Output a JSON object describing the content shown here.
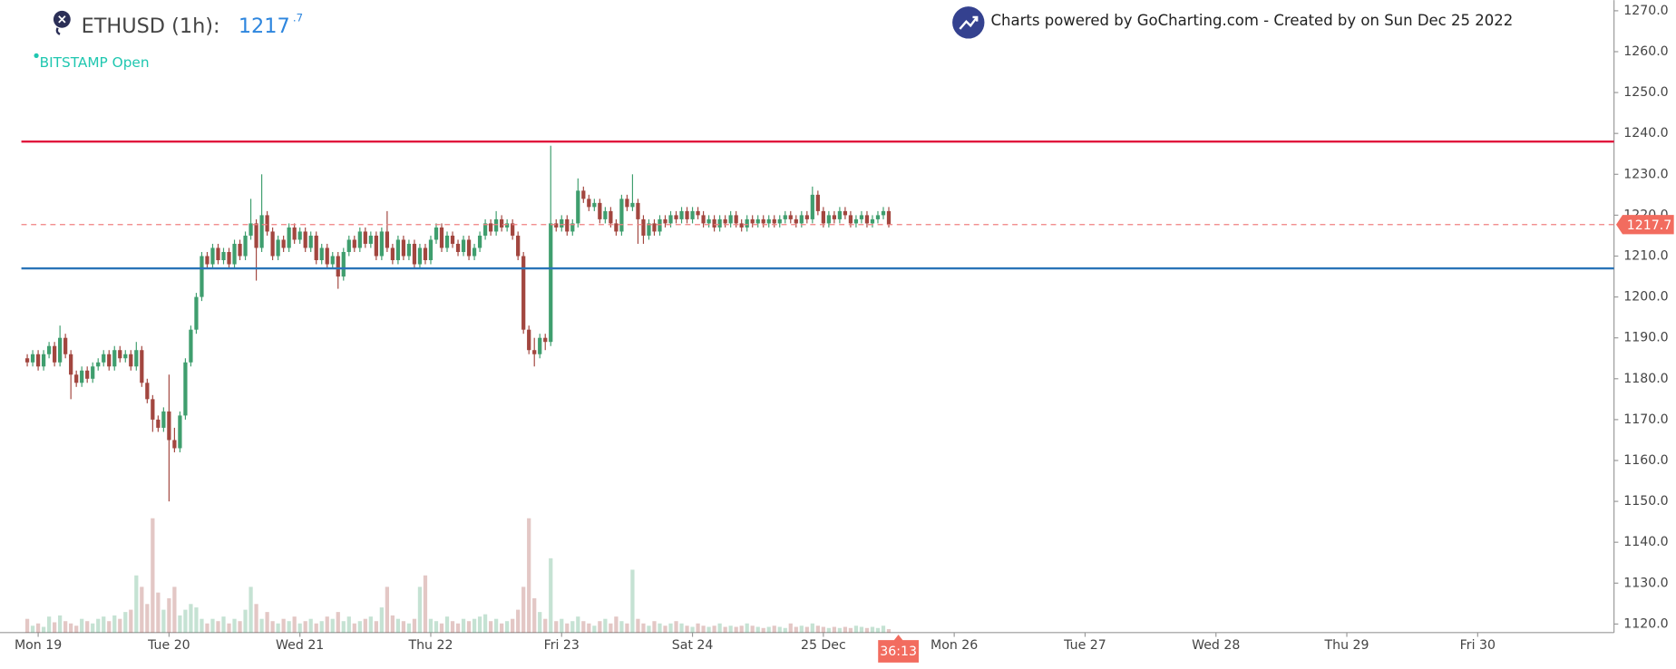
{
  "chart_data": {
    "type": "candlestick",
    "title": "ETHUSD (1h):",
    "price_integer": "1217",
    "price_fraction": ".7",
    "exchange_status": "BITSTAMP Open",
    "attribution": "Charts powered by GoCharting.com - Created by  on Sun Dec 25 2022",
    "countdown": "36:13",
    "last_price": 1217.7,
    "up_color": "#3f9e6e",
    "down_color": "#a2463f",
    "hlines": [
      {
        "value": 1238,
        "color": "#e0143c"
      },
      {
        "value": 1207,
        "color": "#2a74b8"
      }
    ],
    "ylim": [
      1118,
      1272.6
    ],
    "yticks": [
      {
        "value": 1120,
        "label": "1120.0"
      },
      {
        "value": 1130,
        "label": "1130.0"
      },
      {
        "value": 1140,
        "label": "1140.0"
      },
      {
        "value": 1150,
        "label": "1150.0"
      },
      {
        "value": 1160,
        "label": "1160.0"
      },
      {
        "value": 1170,
        "label": "1170.0"
      },
      {
        "value": 1180,
        "label": "1180.0"
      },
      {
        "value": 1190,
        "label": "1190.0"
      },
      {
        "value": 1200,
        "label": "1200.0"
      },
      {
        "value": 1210,
        "label": "1210.0"
      },
      {
        "value": 1220,
        "label": "1220.0"
      },
      {
        "value": 1230,
        "label": "1230.0"
      },
      {
        "value": 1240,
        "label": "1240.0"
      },
      {
        "value": 1250,
        "label": "1250.0"
      },
      {
        "value": 1260,
        "label": "1260.0"
      },
      {
        "value": 1270,
        "label": "1270.0"
      }
    ],
    "xlim": [
      -7,
      289
    ],
    "xticks": [
      {
        "value": 0,
        "label": "Mon 19"
      },
      {
        "value": 24,
        "label": "Tue 20"
      },
      {
        "value": 48,
        "label": "Wed 21"
      },
      {
        "value": 72,
        "label": "Thu 22"
      },
      {
        "value": 96,
        "label": "Fri 23"
      },
      {
        "value": 120,
        "label": "Sat 24"
      },
      {
        "value": 144,
        "label": "25 Dec"
      },
      {
        "value": 168,
        "label": "Mon 26"
      },
      {
        "value": 192,
        "label": "Tue 27"
      },
      {
        "value": 216,
        "label": "Wed 28"
      },
      {
        "value": 240,
        "label": "Thu 29"
      },
      {
        "value": 264,
        "label": "Fri 30"
      }
    ],
    "x": [
      -2,
      -1,
      0,
      1,
      2,
      3,
      4,
      5,
      6,
      7,
      8,
      9,
      10,
      11,
      12,
      13,
      14,
      15,
      16,
      17,
      18,
      19,
      20,
      21,
      22,
      23,
      24,
      25,
      26,
      27,
      28,
      29,
      30,
      31,
      32,
      33,
      34,
      35,
      36,
      37,
      38,
      39,
      40,
      41,
      42,
      43,
      44,
      45,
      46,
      47,
      48,
      49,
      50,
      51,
      52,
      53,
      54,
      55,
      56,
      57,
      58,
      59,
      60,
      61,
      62,
      63,
      64,
      65,
      66,
      67,
      68,
      69,
      70,
      71,
      72,
      73,
      74,
      75,
      76,
      77,
      78,
      79,
      80,
      81,
      82,
      83,
      84,
      85,
      86,
      87,
      88,
      89,
      90,
      91,
      92,
      93,
      94,
      95,
      96,
      97,
      98,
      99,
      100,
      101,
      102,
      103,
      104,
      105,
      106,
      107,
      108,
      109,
      110,
      111,
      112,
      113,
      114,
      115,
      116,
      117,
      118,
      119,
      120,
      121,
      122,
      123,
      124,
      125,
      126,
      127,
      128,
      129,
      130,
      131,
      132,
      133,
      134,
      135,
      136,
      137,
      138,
      139,
      140,
      141,
      142,
      143,
      144,
      145,
      146,
      147,
      148,
      149,
      150,
      151,
      152,
      153,
      154,
      155,
      156
    ],
    "open": [
      1185,
      1184,
      1186,
      1183,
      1186,
      1188,
      1184,
      1190,
      1186,
      1181,
      1179,
      1182,
      1180,
      1183,
      1184,
      1186,
      1183,
      1187,
      1185,
      1186,
      1183,
      1187,
      1179,
      1175,
      1170,
      1168,
      1172,
      1165,
      1163,
      1171,
      1184,
      1192,
      1200,
      1210,
      1208,
      1212,
      1209,
      1211,
      1208,
      1213,
      1210,
      1215,
      1218,
      1212,
      1220,
      1216,
      1210,
      1214,
      1212,
      1217,
      1214,
      1216,
      1212,
      1215,
      1209,
      1212,
      1208,
      1210,
      1205,
      1211,
      1214,
      1212,
      1216,
      1213,
      1215,
      1210,
      1216,
      1212,
      1209,
      1214,
      1210,
      1213,
      1208,
      1212,
      1209,
      1214,
      1217,
      1212,
      1215,
      1213,
      1211,
      1214,
      1210,
      1212,
      1215,
      1218,
      1216,
      1219,
      1217,
      1218,
      1215,
      1210,
      1192,
      1187,
      1186,
      1190,
      1189,
      1218,
      1217,
      1219,
      1216,
      1218,
      1226,
      1224,
      1222,
      1223,
      1219,
      1221,
      1218,
      1216,
      1224,
      1222,
      1223,
      1219,
      1215,
      1218,
      1216,
      1219,
      1218,
      1220,
      1219,
      1221,
      1219,
      1221,
      1220,
      1218,
      1219,
      1217,
      1219,
      1218,
      1220,
      1218,
      1217,
      1219,
      1218,
      1219,
      1218,
      1219,
      1218,
      1219,
      1220,
      1219,
      1218,
      1220,
      1219,
      1225,
      1221,
      1218,
      1220,
      1219,
      1221,
      1220,
      1218,
      1219,
      1220,
      1218,
      1219,
      1220,
      1221
    ],
    "high": [
      1186,
      1187,
      1187,
      1187,
      1189,
      1189,
      1193,
      1191,
      1187,
      1182,
      1183,
      1183,
      1184,
      1185,
      1187,
      1187,
      1188,
      1188,
      1187,
      1187,
      1189,
      1188,
      1180,
      1176,
      1171,
      1173,
      1181,
      1168,
      1172,
      1185,
      1193,
      1201,
      1211,
      1211,
      1213,
      1213,
      1212,
      1212,
      1214,
      1214,
      1216,
      1224,
      1219,
      1230,
      1221,
      1217,
      1215,
      1215,
      1218,
      1218,
      1217,
      1217,
      1216,
      1216,
      1213,
      1213,
      1211,
      1211,
      1212,
      1215,
      1215,
      1217,
      1217,
      1216,
      1216,
      1217,
      1221,
      1213,
      1215,
      1215,
      1214,
      1214,
      1213,
      1213,
      1215,
      1218,
      1218,
      1216,
      1216,
      1214,
      1215,
      1215,
      1213,
      1216,
      1219,
      1219,
      1221,
      1220,
      1219,
      1219,
      1216,
      1211,
      1193,
      1190,
      1191,
      1191,
      1237,
      1219,
      1220,
      1220,
      1219,
      1229,
      1227,
      1225,
      1224,
      1224,
      1222,
      1222,
      1219,
      1225,
      1225,
      1230,
      1224,
      1220,
      1219,
      1219,
      1220,
      1220,
      1221,
      1221,
      1222,
      1222,
      1222,
      1222,
      1221,
      1220,
      1220,
      1220,
      1220,
      1221,
      1221,
      1219,
      1220,
      1220,
      1220,
      1220,
      1220,
      1220,
      1220,
      1221,
      1221,
      1220,
      1221,
      1221,
      1227,
      1226,
      1222,
      1221,
      1221,
      1222,
      1222,
      1221,
      1220,
      1221,
      1221,
      1220,
      1221,
      1222,
      1222
    ],
    "low": [
      1183,
      1183,
      1182,
      1182,
      1185,
      1183,
      1183,
      1185,
      1175,
      1178,
      1178,
      1179,
      1179,
      1182,
      1183,
      1182,
      1182,
      1184,
      1184,
      1182,
      1182,
      1178,
      1174,
      1167,
      1167,
      1167,
      1150,
      1162,
      1162,
      1170,
      1183,
      1191,
      1199,
      1207,
      1207,
      1208,
      1208,
      1207,
      1207,
      1209,
      1209,
      1214,
      1204,
      1211,
      1215,
      1209,
      1209,
      1211,
      1211,
      1213,
      1213,
      1211,
      1211,
      1208,
      1208,
      1207,
      1207,
      1202,
      1204,
      1210,
      1211,
      1211,
      1212,
      1212,
      1209,
      1209,
      1211,
      1208,
      1208,
      1209,
      1209,
      1207,
      1207,
      1208,
      1208,
      1213,
      1211,
      1211,
      1212,
      1210,
      1210,
      1209,
      1209,
      1211,
      1214,
      1215,
      1215,
      1216,
      1216,
      1214,
      1209,
      1191,
      1186,
      1183,
      1185,
      1187,
      1188,
      1216,
      1216,
      1215,
      1215,
      1217,
      1223,
      1221,
      1221,
      1218,
      1218,
      1217,
      1215,
      1215,
      1221,
      1221,
      1213,
      1213,
      1214,
      1215,
      1215,
      1217,
      1217,
      1218,
      1218,
      1218,
      1218,
      1219,
      1217,
      1217,
      1216,
      1216,
      1217,
      1217,
      1217,
      1216,
      1216,
      1217,
      1217,
      1217,
      1217,
      1217,
      1217,
      1218,
      1218,
      1217,
      1217,
      1218,
      1218,
      1220,
      1217,
      1217,
      1218,
      1218,
      1219,
      1217,
      1217,
      1218,
      1217,
      1217,
      1218,
      1219,
      1217
    ],
    "close": [
      1184,
      1186,
      1183,
      1186,
      1188,
      1184,
      1190,
      1186,
      1181,
      1179,
      1182,
      1180,
      1183,
      1184,
      1186,
      1183,
      1187,
      1185,
      1186,
      1183,
      1187,
      1179,
      1175,
      1170,
      1168,
      1172,
      1165,
      1163,
      1171,
      1184,
      1192,
      1200,
      1210,
      1208,
      1212,
      1209,
      1211,
      1208,
      1213,
      1210,
      1215,
      1218,
      1212,
      1220,
      1216,
      1210,
      1214,
      1212,
      1217,
      1214,
      1216,
      1212,
      1215,
      1209,
      1212,
      1208,
      1210,
      1205,
      1211,
      1214,
      1212,
      1216,
      1213,
      1215,
      1210,
      1216,
      1212,
      1209,
      1214,
      1210,
      1213,
      1208,
      1212,
      1209,
      1214,
      1217,
      1212,
      1215,
      1213,
      1211,
      1214,
      1210,
      1212,
      1215,
      1218,
      1216,
      1219,
      1217,
      1218,
      1215,
      1210,
      1192,
      1187,
      1186,
      1190,
      1189,
      1218,
      1217,
      1219,
      1216,
      1218,
      1226,
      1224,
      1222,
      1223,
      1219,
      1221,
      1218,
      1216,
      1224,
      1222,
      1223,
      1219,
      1215,
      1218,
      1216,
      1219,
      1218,
      1220,
      1219,
      1221,
      1219,
      1221,
      1220,
      1218,
      1219,
      1217,
      1219,
      1218,
      1220,
      1218,
      1217,
      1219,
      1218,
      1219,
      1218,
      1219,
      1218,
      1219,
      1220,
      1219,
      1218,
      1220,
      1219,
      1225,
      1221,
      1218,
      1220,
      1219,
      1221,
      1220,
      1218,
      1219,
      1220,
      1218,
      1219,
      1220,
      1221,
      1217.7
    ],
    "volume": [
      12,
      6,
      8,
      5,
      14,
      9,
      15,
      10,
      8,
      6,
      12,
      10,
      8,
      12,
      14,
      10,
      15,
      12,
      18,
      20,
      50,
      40,
      25,
      100,
      35,
      20,
      30,
      40,
      15,
      20,
      25,
      22,
      12,
      8,
      12,
      10,
      14,
      8,
      12,
      10,
      20,
      40,
      25,
      12,
      18,
      10,
      8,
      12,
      10,
      14,
      8,
      10,
      12,
      8,
      10,
      14,
      12,
      18,
      10,
      14,
      8,
      10,
      12,
      14,
      10,
      22,
      40,
      15,
      12,
      10,
      8,
      12,
      40,
      50,
      12,
      10,
      8,
      14,
      10,
      8,
      12,
      10,
      12,
      14,
      16,
      10,
      12,
      8,
      10,
      12,
      20,
      40,
      100,
      30,
      18,
      12,
      65,
      10,
      12,
      8,
      10,
      14,
      10,
      8,
      6,
      10,
      12,
      8,
      14,
      10,
      8,
      55,
      12,
      8,
      6,
      10,
      8,
      6,
      8,
      10,
      8,
      6,
      5,
      8,
      6,
      5,
      6,
      8,
      5,
      6,
      5,
      6,
      8,
      6,
      5,
      4,
      5,
      6,
      5,
      4,
      8,
      5,
      6,
      5,
      8,
      6,
      5,
      4,
      5,
      4,
      5,
      4,
      6,
      5,
      4,
      5,
      4,
      6,
      3
    ]
  }
}
